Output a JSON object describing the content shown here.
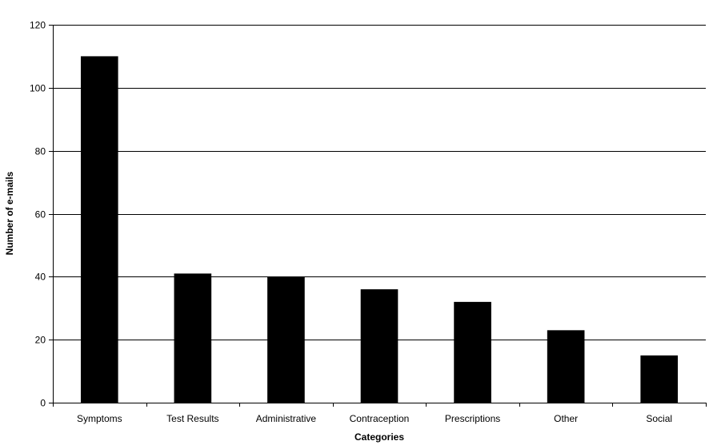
{
  "chart_data": {
    "type": "bar",
    "title": "",
    "xlabel": "Categories",
    "ylabel": "Number of e-mails",
    "categories": [
      "Symptoms",
      "Test Results",
      "Administrative",
      "Contraception",
      "Prescriptions",
      "Other",
      "Social"
    ],
    "values": [
      110,
      41,
      40,
      36,
      32,
      23,
      15
    ],
    "ylim": [
      0,
      120
    ],
    "yticks": [
      0,
      20,
      40,
      60,
      80,
      100,
      120
    ],
    "grid": true,
    "legend": "none",
    "colors": {
      "bar": "#000000",
      "grid": "#000000",
      "background": "#ffffff"
    }
  }
}
